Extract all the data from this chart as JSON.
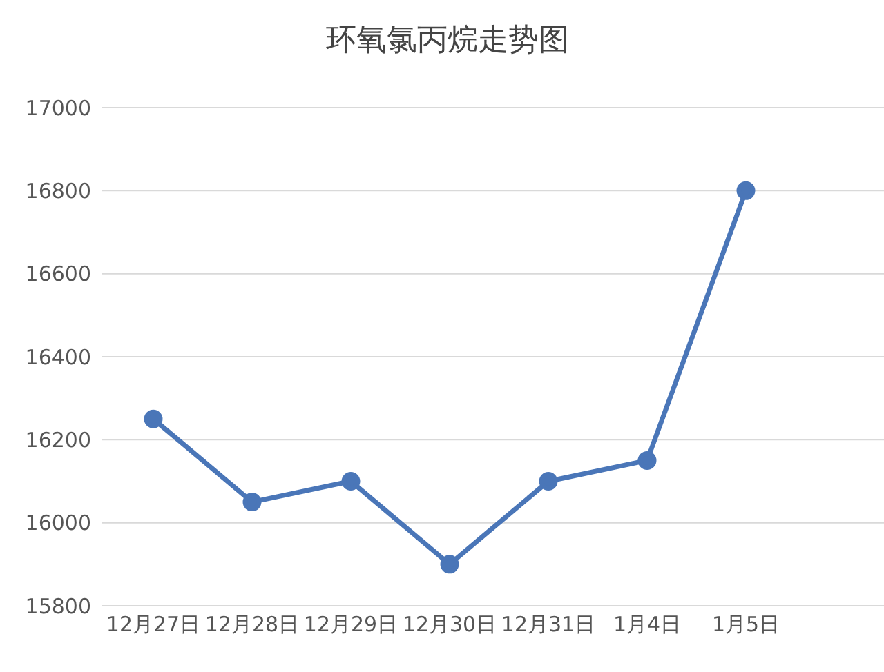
{
  "chart_data": {
    "type": "line",
    "title": "环氧氯丙烷走势图",
    "categories": [
      "12月27日",
      "12月28日",
      "12月29日",
      "12月30日",
      "12月31日",
      "1月4日",
      "1月5日"
    ],
    "series": [
      {
        "color": "#4a76b8",
        "values": [
          16250,
          16050,
          16100,
          15900,
          16100,
          16150,
          16800
        ]
      }
    ],
    "ylim": [
      15800,
      17000
    ],
    "yticks": [
      15800,
      16000,
      16200,
      16400,
      16600,
      16800,
      17000
    ],
    "grid": "y",
    "marker": "circle",
    "line_style": "solid"
  }
}
